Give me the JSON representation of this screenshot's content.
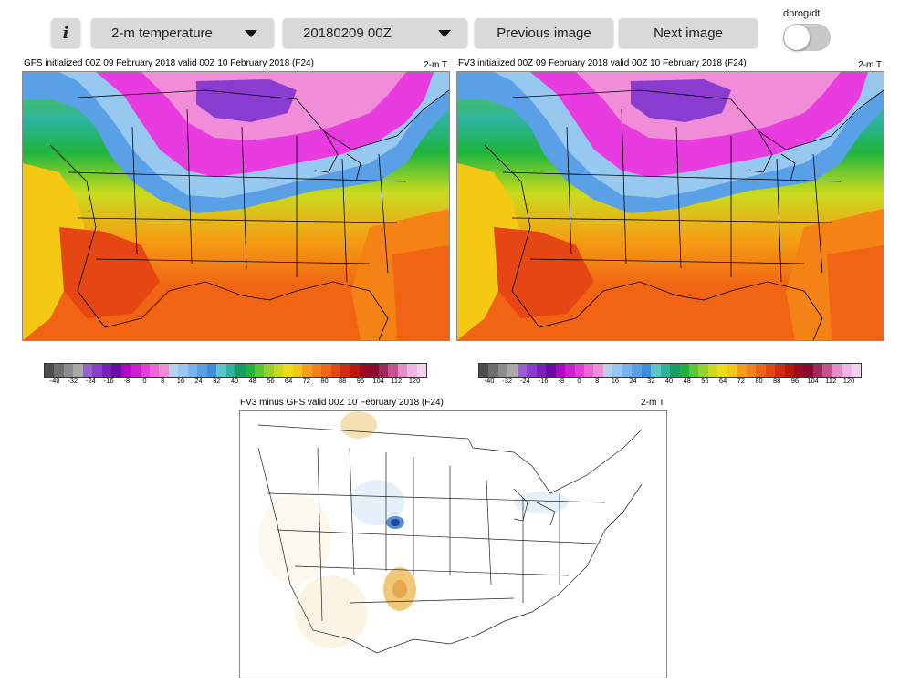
{
  "toolbar": {
    "info_label": "i",
    "field_select": "2-m temperature",
    "cycle_select": "20180209 00Z",
    "previous_label": "Previous image",
    "next_label": "Next image",
    "toggle_label": "dprog/dt",
    "toggle_on": false
  },
  "panels": {
    "gfs": {
      "title": "GFS initialized 00Z 09 February 2018 valid 00Z 10 February 2018 (F24)",
      "var": "2-m T"
    },
    "fv3": {
      "title": "FV3 initialized 00Z 09 February 2018 valid 00Z 10 February 2018 (F24)",
      "var": "2-m T"
    },
    "diff": {
      "title": "FV3 minus GFS valid 00Z 10 February 2018 (F24)",
      "var": "2-m T"
    }
  },
  "colorbar": {
    "ticks": [
      "-40",
      "-32",
      "-24",
      "-16",
      "-8",
      "0",
      "8",
      "16",
      "24",
      "32",
      "40",
      "48",
      "56",
      "64",
      "72",
      "80",
      "88",
      "96",
      "104",
      "112",
      "120"
    ],
    "colors": [
      "#4d4d4d",
      "#6e6e6e",
      "#8c8c8c",
      "#a8a8a8",
      "#9a5fcf",
      "#8a3cd0",
      "#7a1fc0",
      "#6a0aa8",
      "#b400c8",
      "#d21ed2",
      "#e83ce0",
      "#f064d8",
      "#f08cd8",
      "#b4d2f0",
      "#96c8f0",
      "#78b4ec",
      "#5aa0e6",
      "#3c8ce0",
      "#5ac8c8",
      "#2db4a0",
      "#14a064",
      "#1eb43c",
      "#5ac832",
      "#96d228",
      "#c8dc1e",
      "#f0dc14",
      "#f5c814",
      "#f5a014",
      "#f58214",
      "#f06414",
      "#e64614",
      "#d22814",
      "#be140a",
      "#a00a1e",
      "#8c0a32",
      "#a0285a",
      "#c8508c",
      "#e68cc8",
      "#f0b4e6",
      "#f5d2f0"
    ]
  }
}
